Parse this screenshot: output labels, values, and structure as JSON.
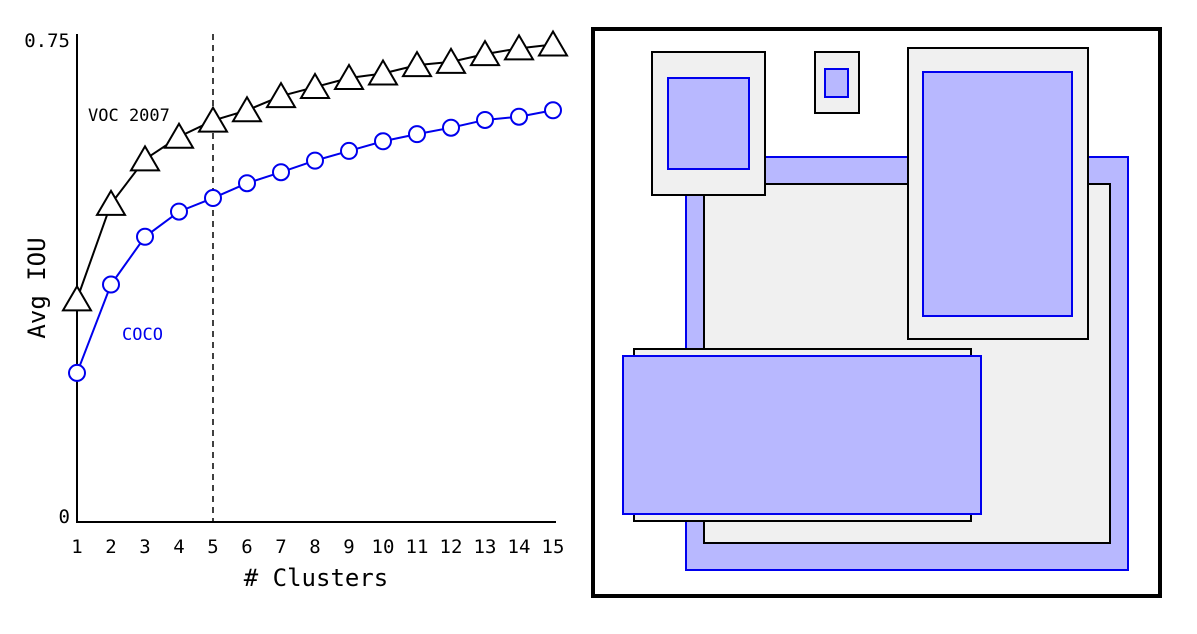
{
  "chart_data": [
    {
      "type": "line",
      "xlabel": "# Clusters",
      "ylabel": "Avg IOU",
      "x": [
        1,
        2,
        3,
        4,
        5,
        6,
        7,
        8,
        9,
        10,
        11,
        12,
        13,
        14,
        15
      ],
      "ylim": [
        0,
        0.75
      ],
      "yticks": [
        "0",
        "0.75"
      ],
      "grid": false,
      "vline": {
        "x": 5,
        "style": "dashed"
      },
      "series": [
        {
          "name": "VOC 2007",
          "marker": "triangle",
          "color": "#000000",
          "values": [
            0.345,
            0.493,
            0.562,
            0.597,
            0.622,
            0.638,
            0.66,
            0.674,
            0.688,
            0.695,
            0.708,
            0.713,
            0.725,
            0.734,
            0.74
          ]
        },
        {
          "name": "COCO",
          "marker": "circle",
          "color": "#0000ee",
          "values": [
            0.231,
            0.368,
            0.442,
            0.481,
            0.502,
            0.525,
            0.542,
            0.56,
            0.575,
            0.59,
            0.601,
            0.611,
            0.623,
            0.628,
            0.638
          ]
        }
      ]
    }
  ],
  "colors": {
    "box_fill": "#f0f0f0",
    "box_stroke": "#000000",
    "cluster_fill": "#b8b8ff",
    "cluster_stroke": "#0000ee"
  }
}
